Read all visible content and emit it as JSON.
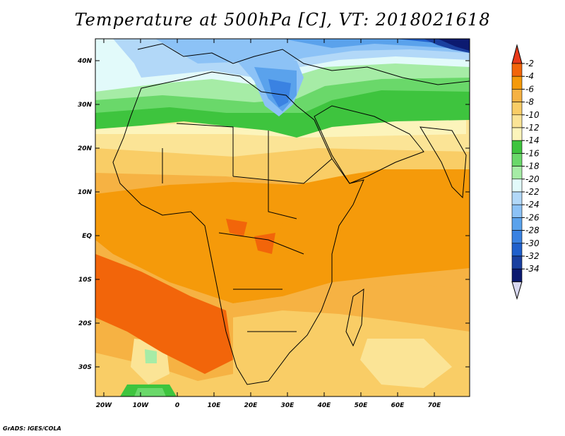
{
  "title": "Temperature at 500hPa [C], VT: 2018021618",
  "credit": "GrADS: IGES/COLA",
  "map": {
    "lon_ticks": [
      "20W",
      "10W",
      "0",
      "10E",
      "20E",
      "30E",
      "40E",
      "50E",
      "60E",
      "70E"
    ],
    "lat_ticks": [
      "40N",
      "30N",
      "20N",
      "10N",
      "EQ",
      "10S",
      "20S",
      "30S"
    ]
  },
  "colorbar": {
    "levels": [
      "-2",
      "-4",
      "-6",
      "-8",
      "-10",
      "-12",
      "-14",
      "-16",
      "-18",
      "-20",
      "-22",
      "-24",
      "-26",
      "-28",
      "-30",
      "-32",
      "-34"
    ],
    "top_arrow_color": "#e83a1a",
    "bottom_arrow_color": "#d8d8f0",
    "colors": [
      "#f2650a",
      "#f59a0a",
      "#f6b243",
      "#f9cd66",
      "#fbe496",
      "#fcf4bb",
      "#3ec43e",
      "#6ad86a",
      "#a6eca6",
      "#e2fafa",
      "#b2d8f8",
      "#8cc2f6",
      "#5aa2ec",
      "#3a82e2",
      "#2060cc",
      "#1a40a0",
      "#0c1a70"
    ]
  }
}
